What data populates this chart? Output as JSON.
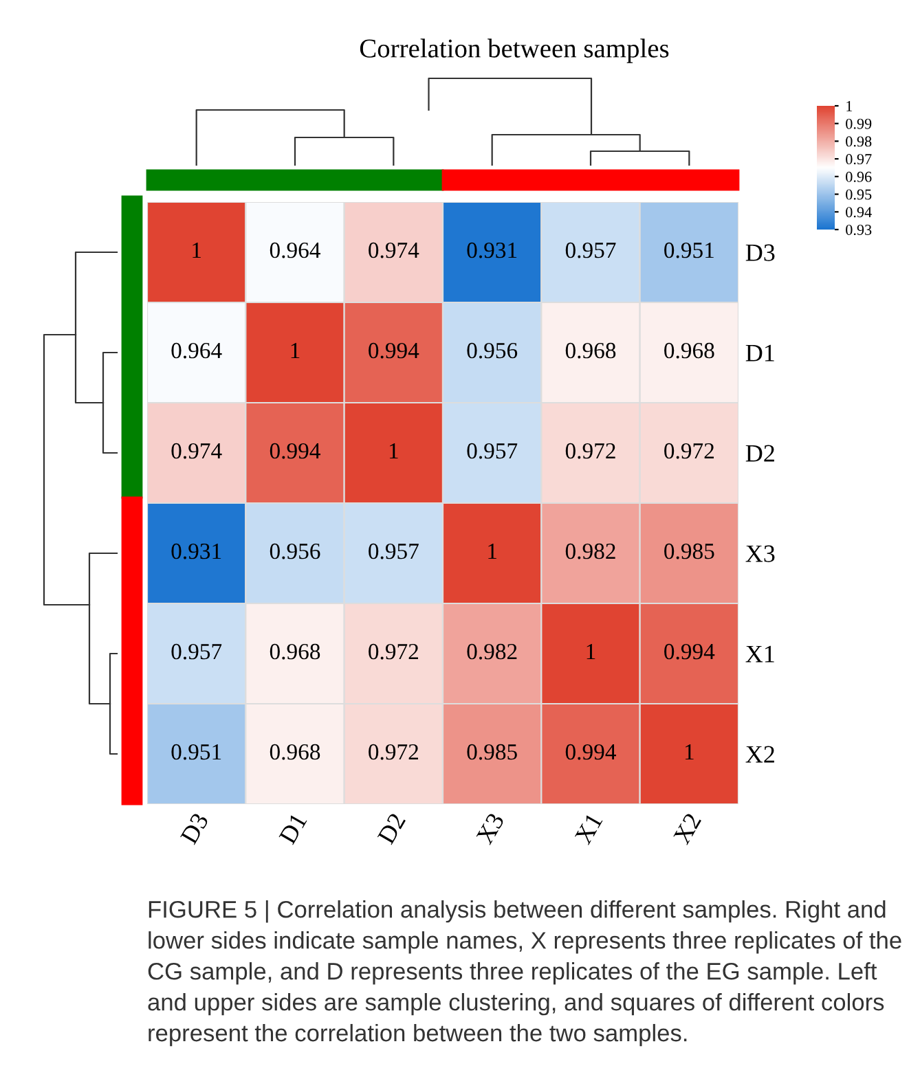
{
  "chart_data": {
    "type": "heatmap",
    "title": "Correlation between samples",
    "categories": [
      "D3",
      "D1",
      "D2",
      "X3",
      "X1",
      "X2"
    ],
    "y_categories": [
      "D3",
      "D1",
      "D2",
      "X3",
      "X1",
      "X2"
    ],
    "cells": [
      [
        1,
        0.964,
        0.974,
        0.931,
        0.957,
        0.951
      ],
      [
        0.964,
        1,
        0.994,
        0.956,
        0.968,
        0.968
      ],
      [
        0.974,
        0.994,
        1,
        0.957,
        0.972,
        0.972
      ],
      [
        0.931,
        0.956,
        0.957,
        1,
        0.982,
        0.985
      ],
      [
        0.957,
        0.968,
        0.972,
        0.982,
        1,
        0.994
      ],
      [
        0.951,
        0.968,
        0.972,
        0.985,
        0.994,
        1
      ]
    ],
    "data_labels": true,
    "clim": [
      0.93,
      1
    ],
    "cticks": [
      0.93,
      0.94,
      0.95,
      0.96,
      0.97,
      0.98,
      0.99,
      1
    ],
    "annotations": [
      "FIGURE 5 | Correlation analysis between different samples. Right and lower sides indicate sample names, X represents three replicates of the CG sample, and D represents three replicates of the EG sample. Left and upper sides are sample clustering, and squares of different colors represent the correlation between the two samples."
    ]
  }
}
